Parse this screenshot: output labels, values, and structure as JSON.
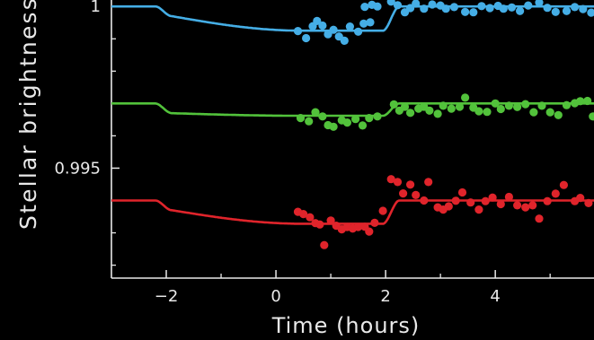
{
  "chart_data": {
    "type": "scatter",
    "xlabel": "Time (hours)",
    "ylabel": "Stellar brightness",
    "xlim": [
      -3,
      5.8
    ],
    "ylim": [
      0.9916,
      1.0002
    ],
    "xticks": [
      -2,
      0,
      2,
      4
    ],
    "x_tick_labels": [
      "−2",
      "0",
      "2",
      "4"
    ],
    "yticks": [
      0.995,
      1
    ],
    "y_tick_labels": [
      "0.995",
      "1"
    ],
    "grid": false,
    "background": "#000000",
    "axis_color": "#e9e9e9",
    "series": [
      {
        "color": "#45aee6",
        "model": {
          "baseline": 1.0,
          "ingress_depth": 0.0003,
          "ingress_start": -2.2,
          "ingress_end": -1.9,
          "transit_low": 0.99925,
          "egress_start": 1.95,
          "egress_end": 2.25
        },
        "points": [
          [
            0.4,
            0.99924
          ],
          [
            0.55,
            0.99902
          ],
          [
            0.67,
            0.99939
          ],
          [
            0.75,
            0.99955
          ],
          [
            0.85,
            0.99941
          ],
          [
            0.95,
            0.99914
          ],
          [
            1.05,
            0.99928
          ],
          [
            1.15,
            0.99907
          ],
          [
            1.25,
            0.99894
          ],
          [
            1.35,
            0.99938
          ],
          [
            1.5,
            0.99922
          ],
          [
            1.6,
            0.99947
          ],
          [
            1.72,
            0.99951
          ],
          [
            1.62,
            0.99999
          ],
          [
            1.75,
            1.00005
          ],
          [
            1.85,
            1.0
          ],
          [
            2.1,
            1.00015
          ],
          [
            2.22,
            1.00004
          ],
          [
            2.35,
            0.99982
          ],
          [
            2.45,
            0.99995
          ],
          [
            2.55,
            1.00009
          ],
          [
            2.7,
            0.99993
          ],
          [
            2.85,
            1.00006
          ],
          [
            3.0,
            1.00003
          ],
          [
            3.1,
            0.99993
          ],
          [
            3.25,
            0.99998
          ],
          [
            3.45,
            0.99983
          ],
          [
            3.6,
            0.99982
          ],
          [
            3.75,
            1.00001
          ],
          [
            3.9,
            0.99995
          ],
          [
            4.05,
            1.00002
          ],
          [
            4.15,
            0.99993
          ],
          [
            4.3,
            0.99997
          ],
          [
            4.45,
            0.99986
          ],
          [
            4.6,
            1.00003
          ],
          [
            4.8,
            1.00012
          ],
          [
            4.95,
            0.99996
          ],
          [
            5.1,
            0.99983
          ],
          [
            5.3,
            0.99986
          ],
          [
            5.45,
            0.99998
          ],
          [
            5.6,
            0.99992
          ],
          [
            5.75,
            0.99981
          ]
        ]
      },
      {
        "color": "#52c23b",
        "model": {
          "baseline": 0.997,
          "ingress_depth": 0.0003,
          "ingress_start": -2.2,
          "ingress_end": -1.9,
          "transit_low": 0.99662,
          "egress_start": 1.95,
          "egress_end": 2.25
        },
        "points": [
          [
            0.45,
            0.99655
          ],
          [
            0.6,
            0.99645
          ],
          [
            0.72,
            0.99673
          ],
          [
            0.85,
            0.9966
          ],
          [
            0.95,
            0.99633
          ],
          [
            1.05,
            0.99628
          ],
          [
            1.2,
            0.99648
          ],
          [
            1.3,
            0.99641
          ],
          [
            1.45,
            0.99652
          ],
          [
            1.58,
            0.99632
          ],
          [
            1.7,
            0.99655
          ],
          [
            1.85,
            0.9966
          ],
          [
            2.15,
            0.99697
          ],
          [
            2.25,
            0.99678
          ],
          [
            2.35,
            0.9969
          ],
          [
            2.45,
            0.99671
          ],
          [
            2.6,
            0.99684
          ],
          [
            2.7,
            0.9969
          ],
          [
            2.8,
            0.99678
          ],
          [
            2.95,
            0.99668
          ],
          [
            3.05,
            0.99693
          ],
          [
            3.2,
            0.99684
          ],
          [
            3.35,
            0.9969
          ],
          [
            3.45,
            0.99718
          ],
          [
            3.6,
            0.99687
          ],
          [
            3.7,
            0.99676
          ],
          [
            3.85,
            0.99674
          ],
          [
            4.0,
            0.997
          ],
          [
            4.1,
            0.99683
          ],
          [
            4.25,
            0.99693
          ],
          [
            4.4,
            0.99689
          ],
          [
            4.55,
            0.99698
          ],
          [
            4.7,
            0.99673
          ],
          [
            4.85,
            0.99693
          ],
          [
            5.0,
            0.99673
          ],
          [
            5.15,
            0.99664
          ],
          [
            5.3,
            0.99695
          ],
          [
            5.45,
            0.99701
          ],
          [
            5.55,
            0.99707
          ],
          [
            5.68,
            0.99708
          ],
          [
            5.78,
            0.9966
          ]
        ]
      },
      {
        "color": "#e0242b",
        "model": {
          "baseline": 0.994,
          "ingress_depth": 0.0003,
          "ingress_start": -2.2,
          "ingress_end": -1.9,
          "transit_low": 0.99328,
          "egress_start": 1.95,
          "egress_end": 2.25
        },
        "points": [
          [
            0.4,
            0.99365
          ],
          [
            0.5,
            0.99358
          ],
          [
            0.62,
            0.99348
          ],
          [
            0.72,
            0.9933
          ],
          [
            0.8,
            0.99326
          ],
          [
            0.88,
            0.99262
          ],
          [
            1.0,
            0.99338
          ],
          [
            1.1,
            0.99322
          ],
          [
            1.2,
            0.99311
          ],
          [
            1.3,
            0.99318
          ],
          [
            1.4,
            0.99313
          ],
          [
            1.5,
            0.99318
          ],
          [
            1.62,
            0.99319
          ],
          [
            1.7,
            0.99304
          ],
          [
            1.8,
            0.99331
          ],
          [
            1.95,
            0.99368
          ],
          [
            2.1,
            0.99466
          ],
          [
            2.22,
            0.99457
          ],
          [
            2.32,
            0.99422
          ],
          [
            2.45,
            0.99449
          ],
          [
            2.55,
            0.99417
          ],
          [
            2.7,
            0.994
          ],
          [
            2.78,
            0.99457
          ],
          [
            2.95,
            0.99379
          ],
          [
            3.05,
            0.99372
          ],
          [
            3.15,
            0.99382
          ],
          [
            3.28,
            0.99399
          ],
          [
            3.4,
            0.99425
          ],
          [
            3.55,
            0.99394
          ],
          [
            3.7,
            0.99372
          ],
          [
            3.82,
            0.99398
          ],
          [
            3.95,
            0.99409
          ],
          [
            4.1,
            0.99389
          ],
          [
            4.25,
            0.99411
          ],
          [
            4.4,
            0.99385
          ],
          [
            4.55,
            0.99379
          ],
          [
            4.68,
            0.99385
          ],
          [
            4.8,
            0.99344
          ],
          [
            4.95,
            0.99398
          ],
          [
            5.1,
            0.99421
          ],
          [
            5.25,
            0.99448
          ],
          [
            5.45,
            0.99398
          ],
          [
            5.55,
            0.99408
          ],
          [
            5.7,
            0.99392
          ]
        ]
      }
    ]
  }
}
